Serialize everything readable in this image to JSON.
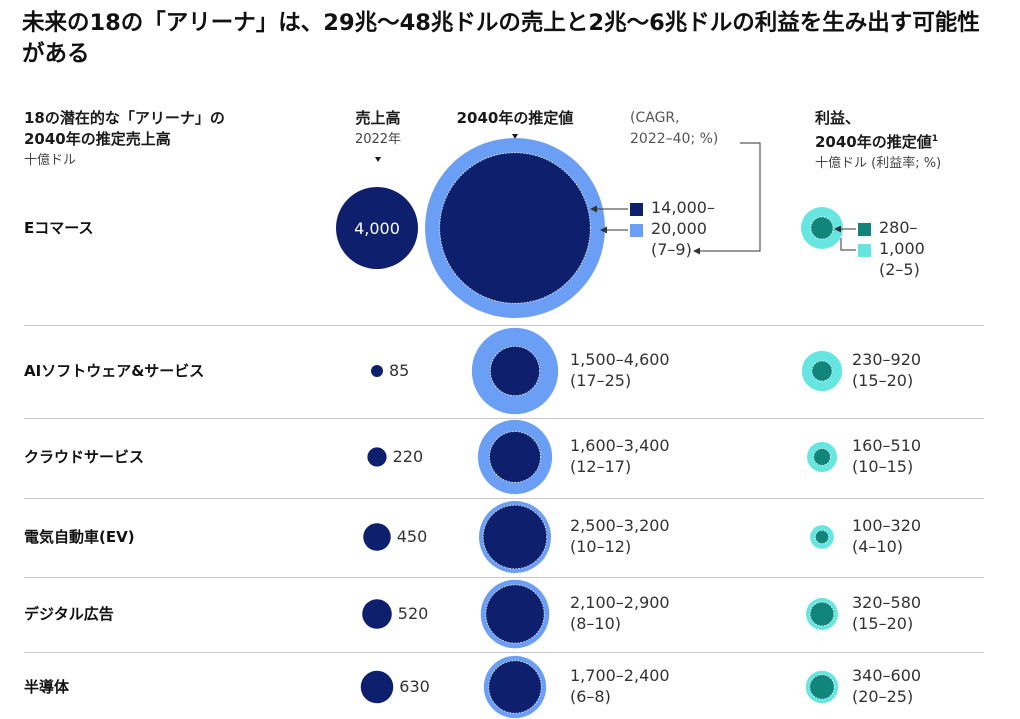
{
  "title": "未来の18の「アリーナ」は、29兆〜48兆ドルの売上と2兆〜6兆ドルの利益を生み出す可能性がある",
  "headers": {
    "arena_line1": "18の潜在的な「アリーナ」の",
    "arena_line2": "2040年の推定売上高",
    "arena_unit": "十億ドル",
    "revenue_title": "売上高",
    "revenue_year": "2022年",
    "estimate_title": "2040年の推定値",
    "cagr_line1": "(CAGR,",
    "cagr_line2": "2022–40; %)",
    "profit_line1": "利益、",
    "profit_line2": "2040年の推定値",
    "profit_footnote": "1",
    "profit_unit": "十億ドル (利益率; %)"
  },
  "colors": {
    "navy": "#0d1f6d",
    "light_blue": "#6b9ef5",
    "teal_dark": "#11857a",
    "teal_light": "#67e6e1"
  },
  "chart_data": {
    "type": "bubble",
    "columns": [
      "売上高 2022年",
      "2040年の推定値 (CAGR, 2022–40; %)",
      "利益、2040年の推定値 十億ドル (利益率; %)"
    ],
    "rows": [
      {
        "name": "Eコマース",
        "revenue_2022": 4000,
        "revenue_2022_label": "4,000",
        "revenue_2040_low": 14000,
        "revenue_2040_high": 20000,
        "revenue_2040_lines": [
          "14,000–",
          "20,000",
          "(7–9)"
        ],
        "cagr_low": 7,
        "cagr_high": 9,
        "profit_2040_low": 280,
        "profit_2040_high": 1000,
        "profit_lines": [
          "280–",
          "1,000",
          "(2–5)"
        ],
        "margin_low": 2,
        "margin_high": 5
      },
      {
        "name": "AIソフトウェア&サービス",
        "revenue_2022": 85,
        "revenue_2022_label": "85",
        "revenue_2040_low": 1500,
        "revenue_2040_high": 4600,
        "revenue_2040_lines": [
          "1,500–4,600",
          "(17–25)"
        ],
        "cagr_low": 17,
        "cagr_high": 25,
        "profit_2040_low": 230,
        "profit_2040_high": 920,
        "profit_lines": [
          "230–920",
          "(15–20)"
        ],
        "margin_low": 15,
        "margin_high": 20
      },
      {
        "name": "クラウドサービス",
        "revenue_2022": 220,
        "revenue_2022_label": "220",
        "revenue_2040_low": 1600,
        "revenue_2040_high": 3400,
        "revenue_2040_lines": [
          "1,600–3,400",
          "(12–17)"
        ],
        "cagr_low": 12,
        "cagr_high": 17,
        "profit_2040_low": 160,
        "profit_2040_high": 510,
        "profit_lines": [
          "160–510",
          "(10–15)"
        ],
        "margin_low": 10,
        "margin_high": 15
      },
      {
        "name": "電気自動車(EV)",
        "revenue_2022": 450,
        "revenue_2022_label": "450",
        "revenue_2040_low": 2500,
        "revenue_2040_high": 3200,
        "revenue_2040_lines": [
          "2,500–3,200",
          "(10–12)"
        ],
        "cagr_low": 10,
        "cagr_high": 12,
        "profit_2040_low": 100,
        "profit_2040_high": 320,
        "profit_lines": [
          "100–320",
          "(4–10)"
        ],
        "margin_low": 4,
        "margin_high": 10
      },
      {
        "name": "デジタル広告",
        "revenue_2022": 520,
        "revenue_2022_label": "520",
        "revenue_2040_low": 2100,
        "revenue_2040_high": 2900,
        "revenue_2040_lines": [
          "2,100–2,900",
          "(8–10)"
        ],
        "cagr_low": 8,
        "cagr_high": 10,
        "profit_2040_low": 320,
        "profit_2040_high": 580,
        "profit_lines": [
          "320–580",
          "(15–20)"
        ],
        "margin_low": 15,
        "margin_high": 20
      },
      {
        "name": "半導体",
        "revenue_2022": 630,
        "revenue_2022_label": "630",
        "revenue_2040_low": 1700,
        "revenue_2040_high": 2400,
        "revenue_2040_lines": [
          "1,700–2,400",
          "(6–8)"
        ],
        "cagr_low": 6,
        "cagr_high": 8,
        "profit_2040_low": 340,
        "profit_2040_high": 600,
        "profit_lines": [
          "340–600",
          "(20–25)"
        ],
        "margin_low": 20,
        "margin_high": 25
      }
    ]
  }
}
